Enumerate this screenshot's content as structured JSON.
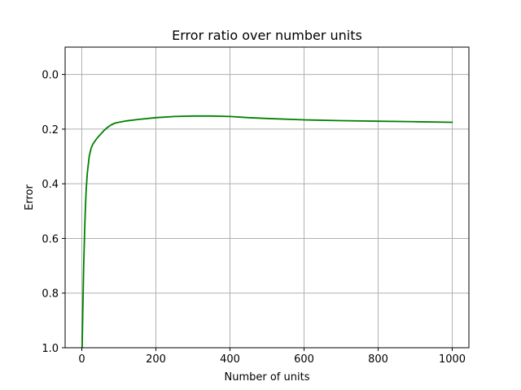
{
  "chart_data": {
    "type": "line",
    "title": "Error ratio over number units",
    "xlabel": "Number of units",
    "ylabel": "Error",
    "xlim": [
      -45,
      1045
    ],
    "ylim": [
      1.0,
      -0.1
    ],
    "y_inverted": true,
    "grid": true,
    "x_ticks": [
      0,
      200,
      400,
      600,
      800,
      1000
    ],
    "x_tick_labels": [
      "0",
      "200",
      "400",
      "600",
      "800",
      "1000"
    ],
    "y_ticks": [
      0.0,
      0.2,
      0.4,
      0.6,
      0.8,
      1.0
    ],
    "y_tick_labels": [
      "0.0",
      "0.2",
      "0.4",
      "0.6",
      "0.8",
      "1.0"
    ],
    "series": [
      {
        "color": "#008000",
        "x": [
          1,
          3,
          5,
          8,
          10,
          12,
          15,
          20,
          25,
          30,
          40,
          50,
          60,
          70,
          80,
          90,
          100,
          120,
          150,
          200,
          250,
          300,
          350,
          400,
          450,
          500,
          600,
          700,
          800,
          900,
          1000
        ],
        "y": [
          1.0,
          0.85,
          0.7,
          0.56,
          0.48,
          0.42,
          0.36,
          0.3,
          0.27,
          0.255,
          0.235,
          0.22,
          0.205,
          0.193,
          0.184,
          0.178,
          0.175,
          0.17,
          0.165,
          0.158,
          0.154,
          0.152,
          0.152,
          0.154,
          0.158,
          0.161,
          0.166,
          0.169,
          0.171,
          0.173,
          0.175
        ]
      }
    ]
  }
}
